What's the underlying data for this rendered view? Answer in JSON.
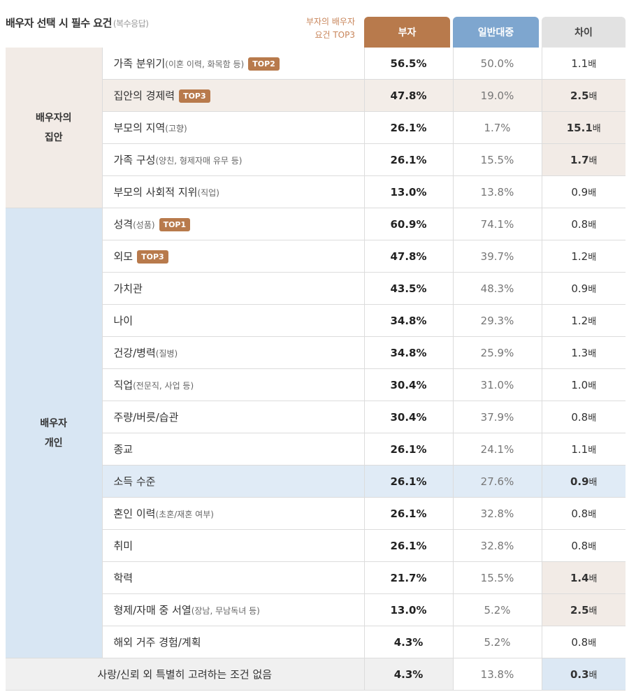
{
  "header": {
    "title": "배우자 선택 시 필수 요건",
    "subtitle": "(복수응답)",
    "top3_label_line1": "부자의 배우자",
    "top3_label_line2": "요건 TOP3",
    "col_rich": "부자",
    "col_general": "일반대중",
    "col_diff": "차이"
  },
  "groups": {
    "family_line1": "배우자의",
    "family_line2": "집안",
    "individual_line1": "배우자",
    "individual_line2": "개인"
  },
  "diff_unit": "배",
  "accent_colors": {
    "rich": "#b87a4c",
    "general": "#7ea6cf",
    "family_bg": "#f2ebe6",
    "individual_bg": "#d8e6f3"
  },
  "rows": [
    {
      "label": "가족 분위기",
      "note": "(이혼 이력, 화목함 등)",
      "badge": "TOP2",
      "rich": "56.5%",
      "general": "50.0%",
      "diff": "1.1"
    },
    {
      "label": "집안의 경제력",
      "note": "",
      "badge": "TOP3",
      "rich": "47.8%",
      "general": "19.0%",
      "diff": "2.5"
    },
    {
      "label": "부모의 지역",
      "note": "(고향)",
      "badge": "",
      "rich": "26.1%",
      "general": "1.7%",
      "diff": "15.1"
    },
    {
      "label": "가족 구성",
      "note": "(양친, 형제자매 유무 등)",
      "badge": "",
      "rich": "26.1%",
      "general": "15.5%",
      "diff": "1.7"
    },
    {
      "label": "부모의 사회적 지위",
      "note": "(직업)",
      "badge": "",
      "rich": "13.0%",
      "general": "13.8%",
      "diff": "0.9"
    },
    {
      "label": "성격",
      "note": "(성품)",
      "badge": "TOP1",
      "rich": "60.9%",
      "general": "74.1%",
      "diff": "0.8"
    },
    {
      "label": "외모",
      "note": "",
      "badge": "TOP3",
      "rich": "47.8%",
      "general": "39.7%",
      "diff": "1.2"
    },
    {
      "label": "가치관",
      "note": "",
      "badge": "",
      "rich": "43.5%",
      "general": "48.3%",
      "diff": "0.9"
    },
    {
      "label": "나이",
      "note": "",
      "badge": "",
      "rich": "34.8%",
      "general": "29.3%",
      "diff": "1.2"
    },
    {
      "label": "건강/병력",
      "note": "(질병)",
      "badge": "",
      "rich": "34.8%",
      "general": "25.9%",
      "diff": "1.3"
    },
    {
      "label": "직업",
      "note": "(전문직, 사업 등)",
      "badge": "",
      "rich": "30.4%",
      "general": "31.0%",
      "diff": "1.0"
    },
    {
      "label": "주량/버릇/습관",
      "note": "",
      "badge": "",
      "rich": "30.4%",
      "general": "37.9%",
      "diff": "0.8"
    },
    {
      "label": "종교",
      "note": "",
      "badge": "",
      "rich": "26.1%",
      "general": "24.1%",
      "diff": "1.1"
    },
    {
      "label": "소득 수준",
      "note": "",
      "badge": "",
      "rich": "26.1%",
      "general": "27.6%",
      "diff": "0.9"
    },
    {
      "label": "혼인 이력",
      "note": "(초혼/재혼 여부)",
      "badge": "",
      "rich": "26.1%",
      "general": "32.8%",
      "diff": "0.8"
    },
    {
      "label": "취미",
      "note": "",
      "badge": "",
      "rich": "26.1%",
      "general": "32.8%",
      "diff": "0.8"
    },
    {
      "label": "학력",
      "note": "",
      "badge": "",
      "rich": "21.7%",
      "general": "15.5%",
      "diff": "1.4"
    },
    {
      "label": "형제/자매 중 서열",
      "note": "(장남, 무남독녀 등)",
      "badge": "",
      "rich": "13.0%",
      "general": "5.2%",
      "diff": "2.5"
    },
    {
      "label": "해외 거주 경험/계획",
      "note": "",
      "badge": "",
      "rich": "4.3%",
      "general": "5.2%",
      "diff": "0.8"
    }
  ],
  "none_row": {
    "label": "사랑/신뢰 외 특별히 고려하는 조건 없음",
    "rich": "4.3%",
    "general": "13.8%",
    "diff": "0.3"
  }
}
